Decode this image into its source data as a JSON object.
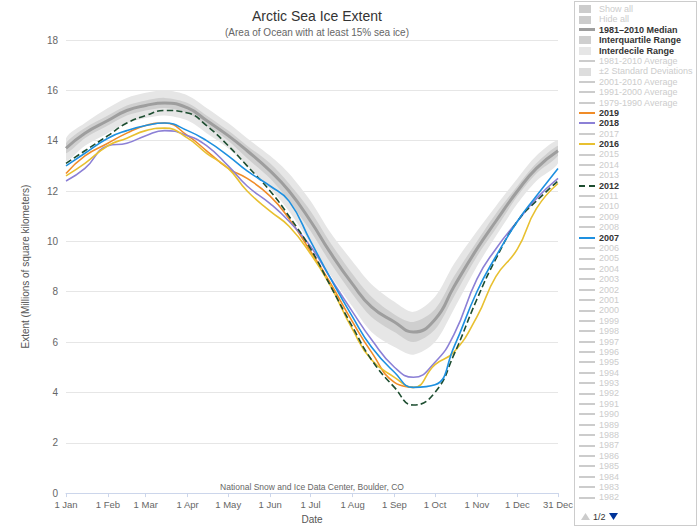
{
  "chart_data": {
    "type": "line",
    "title": "Arctic Sea Ice Extent",
    "subtitle": "(Area of Ocean with at least 15% sea ice)",
    "xlabel": "Date",
    "ylabel": "Extent (Millions of square kilometers)",
    "annotation": "National Snow and Ice Data Center, Boulder, CO",
    "x": [
      1,
      15,
      32,
      46,
      60,
      74,
      91,
      105,
      121,
      135,
      152,
      166,
      182,
      196,
      213,
      227,
      244,
      258,
      274,
      288,
      305,
      319,
      335,
      349,
      365
    ],
    "xlim": [
      1,
      365
    ],
    "xticks": [
      {
        "value": 1,
        "label": "1 Jan"
      },
      {
        "value": 32,
        "label": "1 Feb"
      },
      {
        "value": 60,
        "label": "1 Mar"
      },
      {
        "value": 91,
        "label": "1 Apr"
      },
      {
        "value": 121,
        "label": "1 May"
      },
      {
        "value": 152,
        "label": "1 Jun"
      },
      {
        "value": 182,
        "label": "1 Jul"
      },
      {
        "value": 213,
        "label": "1 Aug"
      },
      {
        "value": 244,
        "label": "1 Sep"
      },
      {
        "value": 274,
        "label": "1 Oct"
      },
      {
        "value": 305,
        "label": "1 Nov"
      },
      {
        "value": 335,
        "label": "1 Dec"
      },
      {
        "value": 365,
        "label": "31 Dec"
      }
    ],
    "ylim": [
      0,
      18
    ],
    "yticks": [
      0,
      2,
      4,
      6,
      8,
      10,
      12,
      14,
      16,
      18
    ],
    "grid": true,
    "series": [
      {
        "name": "Interdecile Range",
        "type": "band",
        "color": "#e6e6e6",
        "lower": [
          13.2,
          13.8,
          14.3,
          14.7,
          14.9,
          15.0,
          14.8,
          14.3,
          13.7,
          13.0,
          12.1,
          11.2,
          9.9,
          8.7,
          7.4,
          6.4,
          5.8,
          5.5,
          6.0,
          7.3,
          9.0,
          10.2,
          11.5,
          12.4,
          13.1
        ],
        "upper": [
          14.1,
          14.7,
          15.3,
          15.7,
          15.9,
          16.0,
          15.8,
          15.3,
          14.7,
          14.1,
          13.4,
          12.7,
          11.6,
          10.4,
          9.2,
          8.3,
          7.6,
          7.2,
          7.8,
          9.1,
          10.4,
          11.4,
          12.5,
          13.4,
          14.0
        ]
      },
      {
        "name": "Interquartile Range",
        "type": "band",
        "color": "#cfcfcf",
        "lower": [
          13.5,
          14.1,
          14.6,
          15.0,
          15.2,
          15.3,
          15.1,
          14.6,
          14.0,
          13.3,
          12.5,
          11.6,
          10.4,
          9.2,
          7.9,
          7.0,
          6.4,
          6.0,
          6.5,
          7.8,
          9.4,
          10.5,
          11.8,
          12.7,
          13.4
        ],
        "upper": [
          13.9,
          14.5,
          15.0,
          15.4,
          15.6,
          15.7,
          15.5,
          15.0,
          14.4,
          13.8,
          13.1,
          12.3,
          11.2,
          10.0,
          8.7,
          7.8,
          7.1,
          6.8,
          7.3,
          8.6,
          10.0,
          11.1,
          12.2,
          13.1,
          13.8
        ]
      },
      {
        "name": "1981–2010 Median",
        "type": "line",
        "color": "#9e9e9e",
        "line_style": "thick",
        "values": [
          13.7,
          14.3,
          14.8,
          15.2,
          15.4,
          15.5,
          15.3,
          14.8,
          14.2,
          13.6,
          12.8,
          12.0,
          10.8,
          9.6,
          8.3,
          7.4,
          6.8,
          6.4,
          6.9,
          8.2,
          9.7,
          10.8,
          12.0,
          12.9,
          13.6
        ]
      },
      {
        "name": "2019",
        "type": "line",
        "color": "#f08c28",
        "line_style": "solid",
        "values": [
          12.7,
          13.4,
          13.9,
          14.3,
          14.6,
          14.7,
          14.2,
          13.6,
          12.9,
          12.5,
          11.8,
          10.9,
          9.6,
          8.4,
          6.8,
          5.6,
          4.4,
          4.2,
          null,
          null,
          null,
          null,
          null,
          null,
          null
        ]
      },
      {
        "name": "2018",
        "type": "line",
        "color": "#8c80d6",
        "line_style": "solid",
        "values": [
          12.4,
          12.9,
          13.8,
          13.9,
          14.2,
          14.4,
          14.2,
          13.8,
          13.0,
          12.2,
          11.5,
          10.8,
          9.8,
          8.6,
          7.2,
          6.1,
          5.0,
          4.6,
          5.2,
          6.3,
          8.5,
          9.7,
          10.8,
          11.7,
          12.5
        ]
      },
      {
        "name": "2016",
        "type": "line",
        "color": "#e8c030",
        "line_style": "solid",
        "values": [
          12.6,
          13.1,
          13.8,
          14.1,
          14.4,
          14.5,
          14.1,
          13.5,
          12.9,
          12.0,
          11.2,
          10.6,
          9.5,
          8.3,
          6.5,
          5.3,
          4.6,
          4.2,
          5.1,
          5.6,
          7.0,
          8.6,
          9.7,
          11.3,
          12.3
        ]
      },
      {
        "name": "2012",
        "type": "line",
        "color": "#1d4d30",
        "line_style": "dashed",
        "values": [
          13.1,
          13.6,
          14.2,
          14.7,
          15.0,
          15.2,
          15.1,
          14.6,
          13.8,
          13.0,
          12.0,
          11.0,
          9.7,
          8.3,
          6.6,
          5.3,
          4.2,
          3.5,
          4.0,
          5.5,
          7.7,
          9.3,
          10.8,
          11.6,
          12.4
        ]
      },
      {
        "name": "2007",
        "type": "line",
        "color": "#1e90e0",
        "line_style": "solid",
        "values": [
          13.0,
          13.5,
          14.1,
          14.4,
          14.6,
          14.7,
          14.4,
          14.0,
          13.4,
          12.8,
          12.2,
          11.6,
          10.0,
          8.6,
          7.0,
          5.8,
          4.8,
          4.2,
          4.3,
          5.8,
          8.0,
          9.4,
          10.8,
          11.8,
          12.9
        ]
      }
    ]
  },
  "legend_panel": {
    "page": "1/2",
    "items": [
      {
        "label": "Show all",
        "active": false,
        "marker": "box",
        "color": "#cccccc"
      },
      {
        "label": "Hide all",
        "active": false,
        "marker": "box",
        "color": "#cccccc"
      },
      {
        "label": "1981–2010 Median",
        "active": true,
        "marker": "line",
        "line_style": "thick",
        "color": "#9e9e9e"
      },
      {
        "label": "Interquartile Range",
        "active": true,
        "marker": "box",
        "color": "#cfcfcf"
      },
      {
        "label": "Interdecile Range",
        "active": true,
        "marker": "box",
        "color": "#e6e6e6"
      },
      {
        "label": "1981-2010 Average",
        "active": false,
        "marker": "line",
        "color": "#cccccc"
      },
      {
        "label": "±2 Standard Deviations",
        "active": false,
        "marker": "box",
        "color": "#dddddd"
      },
      {
        "label": "2001-2010 Average",
        "active": false,
        "marker": "line",
        "color": "#cccccc"
      },
      {
        "label": "1991-2000 Average",
        "active": false,
        "marker": "line",
        "color": "#cccccc"
      },
      {
        "label": "1979-1990 Average",
        "active": false,
        "marker": "line",
        "color": "#cccccc"
      },
      {
        "label": "2019",
        "active": true,
        "marker": "line",
        "color": "#f08c28"
      },
      {
        "label": "2018",
        "active": true,
        "marker": "line",
        "color": "#8c80d6"
      },
      {
        "label": "2017",
        "active": false,
        "marker": "line",
        "color": "#cccccc"
      },
      {
        "label": "2016",
        "active": true,
        "marker": "line",
        "color": "#e8c030"
      },
      {
        "label": "2015",
        "active": false,
        "marker": "line",
        "color": "#cccccc"
      },
      {
        "label": "2014",
        "active": false,
        "marker": "line",
        "color": "#cccccc"
      },
      {
        "label": "2013",
        "active": false,
        "marker": "line",
        "color": "#cccccc"
      },
      {
        "label": "2012",
        "active": true,
        "marker": "line",
        "line_style": "dashed",
        "color": "#1d4d30"
      },
      {
        "label": "2011",
        "active": false,
        "marker": "line",
        "color": "#cccccc"
      },
      {
        "label": "2010",
        "active": false,
        "marker": "line",
        "color": "#cccccc"
      },
      {
        "label": "2009",
        "active": false,
        "marker": "line",
        "color": "#cccccc"
      },
      {
        "label": "2008",
        "active": false,
        "marker": "line",
        "color": "#cccccc"
      },
      {
        "label": "2007",
        "active": true,
        "marker": "line",
        "color": "#1e90e0"
      },
      {
        "label": "2006",
        "active": false,
        "marker": "line",
        "color": "#cccccc"
      },
      {
        "label": "2005",
        "active": false,
        "marker": "line",
        "color": "#cccccc"
      },
      {
        "label": "2004",
        "active": false,
        "marker": "line",
        "color": "#cccccc"
      },
      {
        "label": "2003",
        "active": false,
        "marker": "line",
        "color": "#cccccc"
      },
      {
        "label": "2002",
        "active": false,
        "marker": "line",
        "color": "#cccccc"
      },
      {
        "label": "2001",
        "active": false,
        "marker": "line",
        "color": "#cccccc"
      },
      {
        "label": "2000",
        "active": false,
        "marker": "line",
        "color": "#cccccc"
      },
      {
        "label": "1999",
        "active": false,
        "marker": "line",
        "color": "#cccccc"
      },
      {
        "label": "1998",
        "active": false,
        "marker": "line",
        "color": "#cccccc"
      },
      {
        "label": "1997",
        "active": false,
        "marker": "line",
        "color": "#cccccc"
      },
      {
        "label": "1996",
        "active": false,
        "marker": "line",
        "color": "#cccccc"
      },
      {
        "label": "1995",
        "active": false,
        "marker": "line",
        "color": "#cccccc"
      },
      {
        "label": "1994",
        "active": false,
        "marker": "line",
        "color": "#cccccc"
      },
      {
        "label": "1993",
        "active": false,
        "marker": "line",
        "color": "#cccccc"
      },
      {
        "label": "1992",
        "active": false,
        "marker": "line",
        "color": "#cccccc"
      },
      {
        "label": "1991",
        "active": false,
        "marker": "line",
        "color": "#cccccc"
      },
      {
        "label": "1990",
        "active": false,
        "marker": "line",
        "color": "#cccccc"
      },
      {
        "label": "1989",
        "active": false,
        "marker": "line",
        "color": "#cccccc"
      },
      {
        "label": "1988",
        "active": false,
        "marker": "line",
        "color": "#cccccc"
      },
      {
        "label": "1987",
        "active": false,
        "marker": "line",
        "color": "#cccccc"
      },
      {
        "label": "1986",
        "active": false,
        "marker": "line",
        "color": "#cccccc"
      },
      {
        "label": "1985",
        "active": false,
        "marker": "line",
        "color": "#cccccc"
      },
      {
        "label": "1984",
        "active": false,
        "marker": "line",
        "color": "#cccccc"
      },
      {
        "label": "1983",
        "active": false,
        "marker": "line",
        "color": "#cccccc"
      },
      {
        "label": "1982",
        "active": false,
        "marker": "line",
        "color": "#cccccc"
      }
    ]
  }
}
